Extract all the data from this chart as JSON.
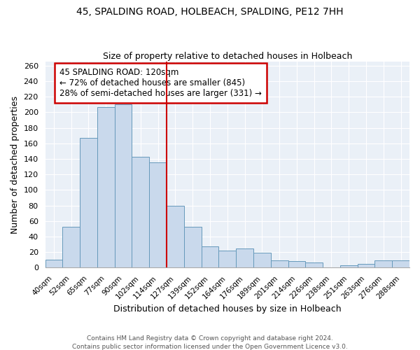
{
  "title1": "45, SPALDING ROAD, HOLBEACH, SPALDING, PE12 7HH",
  "title2": "Size of property relative to detached houses in Holbeach",
  "xlabel": "Distribution of detached houses by size in Holbeach",
  "ylabel": "Number of detached properties",
  "footer1": "Contains HM Land Registry data © Crown copyright and database right 2024.",
  "footer2": "Contains public sector information licensed under the Open Government Licence v3.0.",
  "bar_labels": [
    "40sqm",
    "52sqm",
    "65sqm",
    "77sqm",
    "90sqm",
    "102sqm",
    "114sqm",
    "127sqm",
    "139sqm",
    "152sqm",
    "164sqm",
    "176sqm",
    "189sqm",
    "201sqm",
    "214sqm",
    "226sqm",
    "238sqm",
    "251sqm",
    "263sqm",
    "276sqm",
    "288sqm"
  ],
  "bar_values": [
    10,
    53,
    167,
    207,
    210,
    143,
    135,
    80,
    53,
    27,
    22,
    25,
    19,
    9,
    8,
    7,
    0,
    3,
    5,
    9,
    9
  ],
  "bar_color": "#c9d9ec",
  "bar_edge_color": "#6699bb",
  "bg_color": "#eaf0f7",
  "annotation_title": "45 SPALDING ROAD: 120sqm",
  "annotation_line1": "← 72% of detached houses are smaller (845)",
  "annotation_line2": "28% of semi-detached houses are larger (331) →",
  "vline_color": "#cc0000",
  "ylim": [
    0,
    265
  ],
  "yticks": [
    0,
    20,
    40,
    60,
    80,
    100,
    120,
    140,
    160,
    180,
    200,
    220,
    240,
    260
  ]
}
